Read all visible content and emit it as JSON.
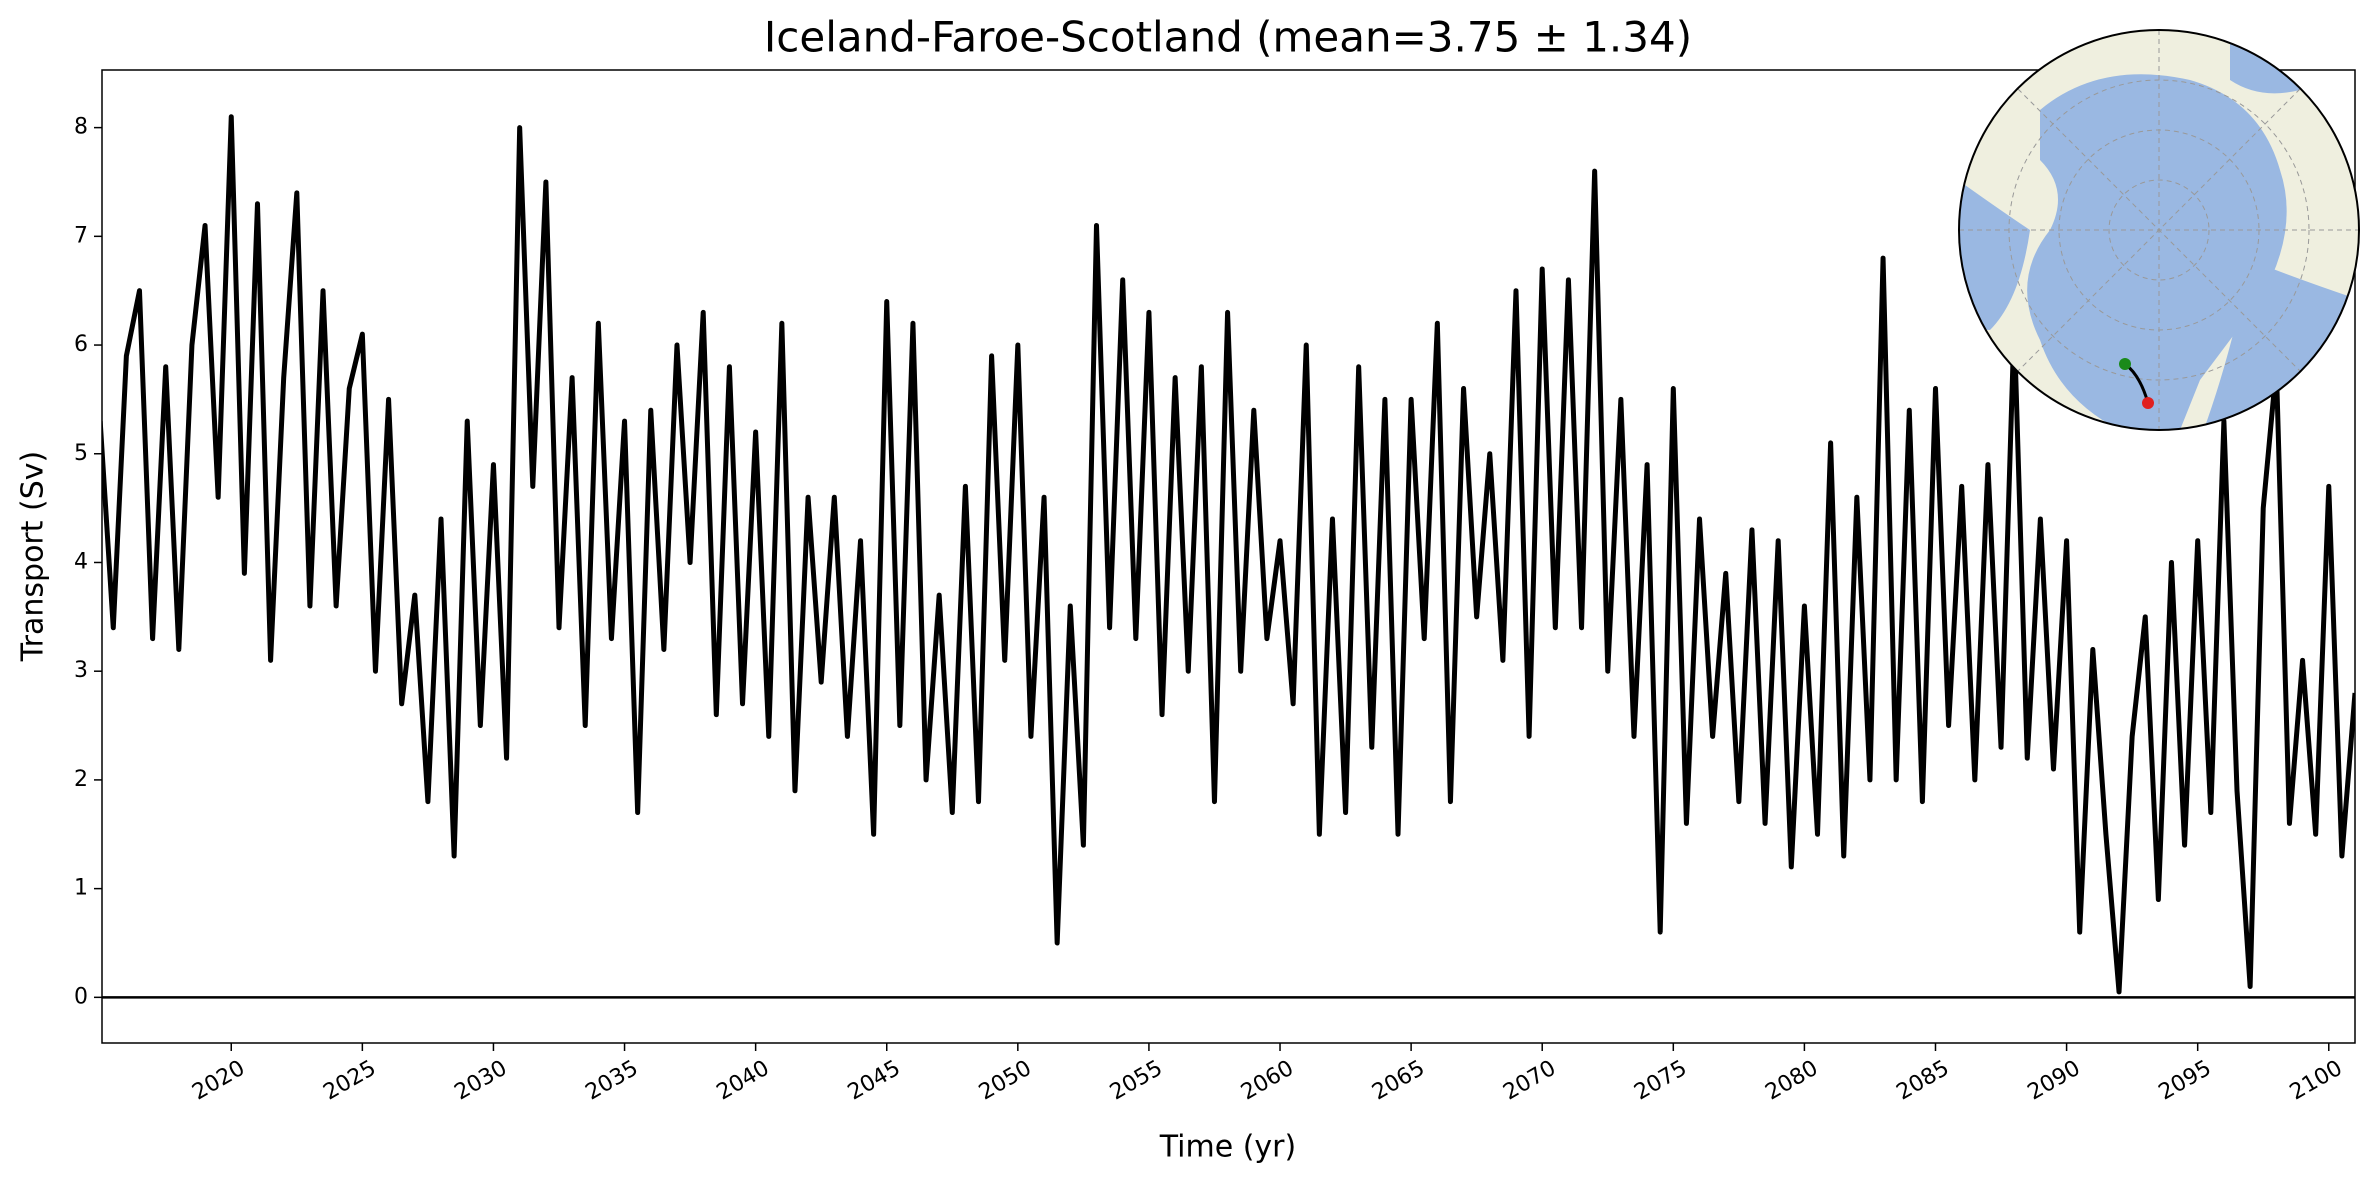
{
  "chart_data": {
    "type": "line",
    "title": "Iceland-Faroe-Scotland (mean=3.75 ± 1.34)",
    "xlabel": "Time (yr)",
    "ylabel": "Transport (Sv)",
    "color": "#000000",
    "x": [
      2015,
      2015.5,
      2016,
      2016.5,
      2017,
      2017.5,
      2018,
      2018.5,
      2019,
      2019.5,
      2020,
      2020.5,
      2021,
      2021.5,
      2022,
      2022.5,
      2023,
      2023.5,
      2024,
      2024.5,
      2025,
      2025.5,
      2026,
      2026.5,
      2027,
      2027.5,
      2028,
      2028.5,
      2029,
      2029.5,
      2030,
      2030.5,
      2031,
      2031.5,
      2032,
      2032.5,
      2033,
      2033.5,
      2034,
      2034.5,
      2035,
      2035.5,
      2036,
      2036.5,
      2037,
      2037.5,
      2038,
      2038.5,
      2039,
      2039.5,
      2040,
      2040.5,
      2041,
      2041.5,
      2042,
      2042.5,
      2043,
      2043.5,
      2044,
      2044.5,
      2045,
      2045.5,
      2046,
      2046.5,
      2047,
      2047.5,
      2048,
      2048.5,
      2049,
      2049.5,
      2050,
      2050.5,
      2051,
      2051.5,
      2052,
      2052.5,
      2053,
      2053.5,
      2054,
      2054.5,
      2055,
      2055.5,
      2056,
      2056.5,
      2057,
      2057.5,
      2058,
      2058.5,
      2059,
      2059.5,
      2060,
      2060.5,
      2061,
      2061.5,
      2062,
      2062.5,
      2063,
      2063.5,
      2064,
      2064.5,
      2065,
      2065.5,
      2066,
      2066.5,
      2067,
      2067.5,
      2068,
      2068.5,
      2069,
      2069.5,
      2070,
      2070.5,
      2071,
      2071.5,
      2072,
      2072.5,
      2073,
      2073.5,
      2074,
      2074.5,
      2075,
      2075.5,
      2076,
      2076.5,
      2077,
      2077.5,
      2078,
      2078.5,
      2079,
      2079.5,
      2080,
      2080.5,
      2081,
      2081.5,
      2082,
      2082.5,
      2083,
      2083.5,
      2084,
      2084.5,
      2085,
      2085.5,
      2086,
      2086.5,
      2087,
      2087.5,
      2088,
      2088.5,
      2089,
      2089.5,
      2090,
      2090.5,
      2091,
      2091.5,
      2092,
      2092.5,
      2093,
      2093.5,
      2094,
      2094.5,
      2095,
      2095.5,
      2096,
      2096.5,
      2097,
      2097.5,
      2098,
      2098.5,
      2099,
      2099.5,
      2100,
      2100.5,
      2101
    ],
    "values": [
      5.3,
      3.4,
      5.9,
      6.5,
      3.3,
      5.8,
      3.2,
      6.0,
      7.1,
      4.6,
      8.1,
      3.9,
      7.3,
      3.1,
      5.7,
      7.4,
      3.6,
      6.5,
      3.6,
      5.6,
      6.1,
      3.0,
      5.5,
      2.7,
      3.7,
      1.8,
      4.4,
      1.3,
      5.3,
      2.5,
      4.9,
      2.2,
      8.0,
      4.7,
      7.5,
      3.4,
      5.7,
      2.5,
      6.2,
      3.3,
      5.3,
      1.7,
      5.4,
      3.2,
      6.0,
      4.0,
      6.3,
      2.6,
      5.8,
      2.7,
      5.2,
      2.4,
      6.2,
      1.9,
      4.6,
      2.9,
      4.6,
      2.4,
      4.2,
      1.5,
      6.4,
      2.5,
      6.2,
      2.0,
      3.7,
      1.7,
      4.7,
      1.8,
      5.9,
      3.1,
      6.0,
      2.4,
      4.6,
      0.5,
      3.6,
      1.4,
      7.1,
      3.4,
      6.6,
      3.3,
      6.3,
      2.6,
      5.7,
      3.0,
      5.8,
      1.8,
      6.3,
      3.0,
      5.4,
      3.3,
      4.2,
      2.7,
      6.0,
      1.5,
      4.4,
      1.7,
      5.8,
      2.3,
      5.5,
      1.5,
      5.5,
      3.3,
      6.2,
      1.8,
      5.6,
      3.5,
      5.0,
      3.1,
      6.5,
      2.4,
      6.7,
      3.4,
      6.6,
      3.4,
      7.6,
      3.0,
      5.5,
      2.4,
      4.9,
      0.6,
      5.6,
      1.6,
      4.4,
      2.4,
      3.9,
      1.8,
      4.3,
      1.6,
      4.2,
      1.2,
      3.6,
      1.5,
      5.1,
      1.3,
      4.6,
      2.0,
      6.8,
      2.0,
      5.4,
      1.8,
      5.6,
      2.5,
      4.7,
      2.0,
      4.9,
      2.3,
      6.2,
      2.2,
      4.4,
      2.1,
      4.2,
      0.6,
      3.2,
      1.5,
      0.05,
      2.4,
      3.5,
      0.9,
      4.0,
      1.4,
      4.2,
      1.7,
      5.3,
      1.9,
      0.1,
      4.5,
      5.8,
      1.6,
      3.1,
      1.5,
      4.7,
      1.3,
      2.8
    ],
    "xlim": [
      2015.07,
      2101
    ],
    "ylim": [
      -0.42,
      8.53
    ],
    "xticks": [
      2020,
      2025,
      2030,
      2035,
      2040,
      2045,
      2050,
      2055,
      2060,
      2065,
      2070,
      2075,
      2080,
      2085,
      2090,
      2095,
      2100
    ],
    "yticks": [
      0,
      1,
      2,
      3,
      4,
      5,
      6,
      7,
      8
    ],
    "hline": 0
  }
}
